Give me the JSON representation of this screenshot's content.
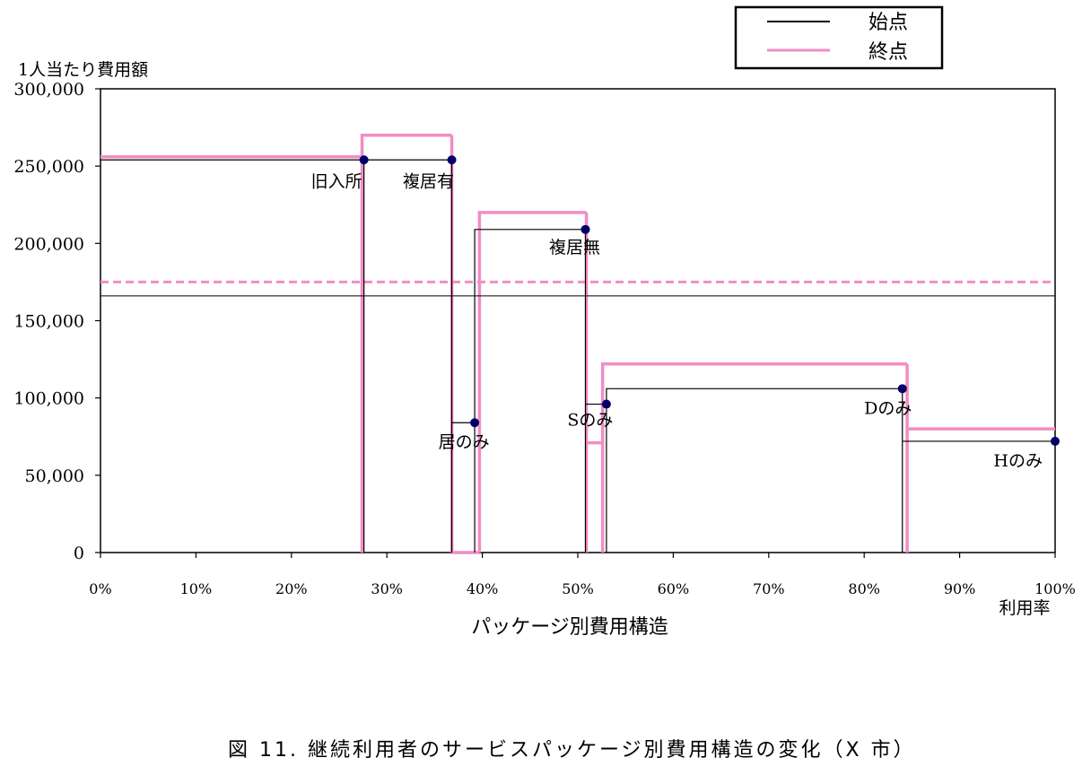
{
  "caption": "図 11. 継続利用者のサービスパッケージ別費用構造の変化（X 市）",
  "chart_data": {
    "type": "line",
    "title": "",
    "ylabel": "1人当たり費用額",
    "xlabel": "パッケージ別費用構造",
    "x_end_label": "利用率",
    "ylim": [
      0,
      300000
    ],
    "xlim": [
      0,
      100
    ],
    "y_ticks": [
      0,
      50000,
      100000,
      150000,
      200000,
      250000,
      300000
    ],
    "y_tick_labels": [
      "0",
      "50,000",
      "100,000",
      "150,000",
      "200,000",
      "250,000",
      "300,000"
    ],
    "x_ticks": [
      0,
      10,
      20,
      30,
      40,
      50,
      60,
      70,
      80,
      90,
      100
    ],
    "x_tick_labels": [
      "0%",
      "10%",
      "20%",
      "30%",
      "40%",
      "50%",
      "60%",
      "70%",
      "80%",
      "90%",
      "100%"
    ],
    "legend": {
      "position": "top-right",
      "entries": [
        "始点",
        "終点"
      ]
    },
    "colors": {
      "start": "#000000",
      "end": "#f28cc6",
      "point": "#000066"
    },
    "series": [
      {
        "name": "始点",
        "average": 166000,
        "segments": [
          {
            "x0": 0,
            "x1": 27.6,
            "y": 254000
          },
          {
            "x0": 27.6,
            "x1": 36.8,
            "y": 254000
          },
          {
            "x0": 36.8,
            "x1": 39.2,
            "y": 84000
          },
          {
            "x0": 39.2,
            "x1": 50.8,
            "y": 209000
          },
          {
            "x0": 50.8,
            "x1": 53.0,
            "y": 96000
          },
          {
            "x0": 53.0,
            "x1": 84.0,
            "y": 106000
          },
          {
            "x0": 84.0,
            "x1": 100,
            "y": 72000
          }
        ]
      },
      {
        "name": "終点",
        "average": 175000,
        "segments": [
          {
            "x0": 0,
            "x1": 27.4,
            "y": 256000
          },
          {
            "x0": 27.4,
            "x1": 36.8,
            "y": 270000
          },
          {
            "x0": 36.8,
            "x1": 39.7,
            "y": 0
          },
          {
            "x0": 39.7,
            "x1": 50.9,
            "y": 220000
          },
          {
            "x0": 50.9,
            "x1": 52.6,
            "y": 71000
          },
          {
            "x0": 52.6,
            "x1": 84.5,
            "y": 122000
          },
          {
            "x0": 84.5,
            "x1": 100,
            "y": 80000
          }
        ]
      }
    ],
    "points": [
      {
        "label": "旧入所",
        "x": 27.6,
        "y": 254000
      },
      {
        "label": "複居有",
        "x": 36.8,
        "y": 254000
      },
      {
        "label": "居のみ",
        "x": 39.2,
        "y": 84000
      },
      {
        "label": "複居無",
        "x": 50.8,
        "y": 209000
      },
      {
        "label": "Sのみ",
        "x": 53.0,
        "y": 96000
      },
      {
        "label": "Dのみ",
        "x": 84.0,
        "y": 106000
      },
      {
        "label": "Hのみ",
        "x": 100,
        "y": 72000
      }
    ]
  }
}
